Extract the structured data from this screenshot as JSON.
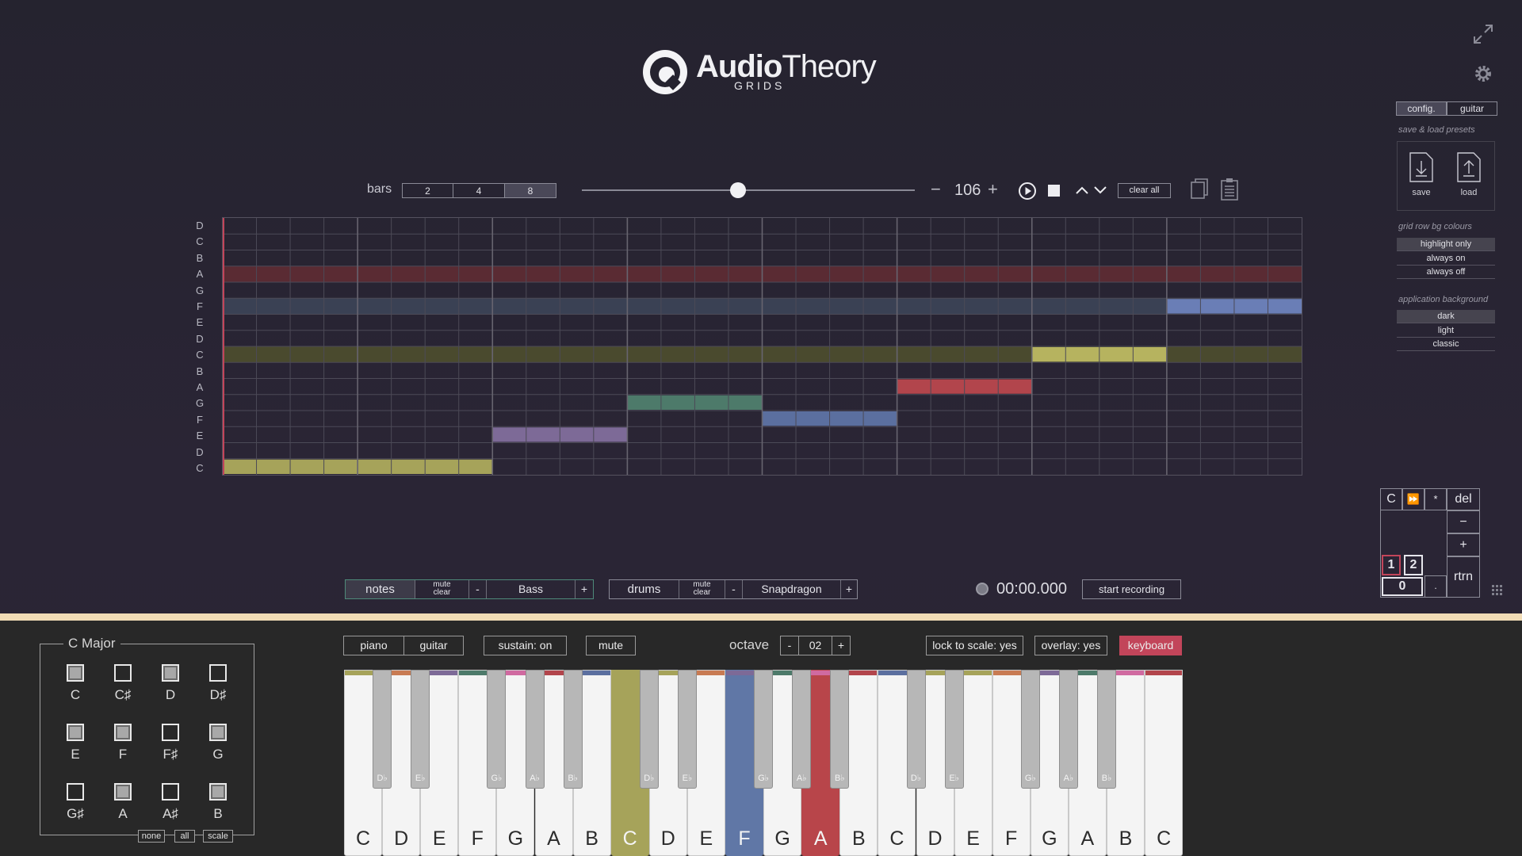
{
  "app": {
    "brand_a": "Audio",
    "brand_b": "Theory",
    "brand_sub": "GRIDS"
  },
  "toolbar": {
    "bars_label": "bars",
    "bars_options": [
      "2",
      "4",
      "8"
    ],
    "bars_selected": "8",
    "tempo_minus": "−",
    "tempo": "106",
    "tempo_plus": "+",
    "position": 0.47,
    "clear_all": "clear all"
  },
  "grid": {
    "row_labels": [
      "D",
      "C",
      "B",
      "A",
      "G",
      "F",
      "E",
      "D",
      "C",
      "B",
      "A",
      "G",
      "F",
      "E",
      "D",
      "C"
    ],
    "highlight_rows": [
      {
        "row": 3,
        "color": "#5a2b33"
      },
      {
        "row": 5,
        "color": "#3a4154"
      },
      {
        "row": 8,
        "color": "#4a4a2e"
      }
    ],
    "steps": 32,
    "notes": [
      {
        "row": 15,
        "start": 0,
        "len": 8,
        "color": "#a6a35a"
      },
      {
        "row": 13,
        "start": 8,
        "len": 4,
        "color": "#7d6a97"
      },
      {
        "row": 11,
        "start": 12,
        "len": 4,
        "color": "#4d7a6a"
      },
      {
        "row": 12,
        "start": 16,
        "len": 4,
        "color": "#5b6f9f"
      },
      {
        "row": 10,
        "start": 20,
        "len": 4,
        "color": "#b2454c"
      },
      {
        "row": 8,
        "start": 24,
        "len": 4,
        "color": "#b6b35f"
      },
      {
        "row": 5,
        "start": 28,
        "len": 4,
        "color": "#6a7eb6"
      }
    ]
  },
  "right_panel": {
    "tabs": [
      "config.",
      "guitar"
    ],
    "presets_head": "save & load presets",
    "save": "save",
    "load": "load",
    "row_bg_head": "grid row bg colours",
    "row_bg_options": [
      "highlight only",
      "always on",
      "always off"
    ],
    "app_bg_head": "application background",
    "app_bg_options": [
      "dark",
      "light",
      "classic"
    ]
  },
  "numpad": {
    "c": "C",
    "ff": "⏩",
    "star": "*",
    "del": "del",
    "minus": "−",
    "plus": "+",
    "one": "1",
    "two": "2",
    "zero": "0",
    "dot": ".",
    "rtrn": "rtrn"
  },
  "tracks": {
    "notes_label": "notes",
    "mute": "mute",
    "clear": "clear",
    "minus": "-",
    "notes_instrument": "Bass",
    "plus": "+",
    "drums_label": "drums",
    "drums_instrument": "Snapdragon"
  },
  "recording": {
    "time": "00:00.000",
    "button": "start recording"
  },
  "scale_panel": {
    "title": "C Major",
    "notes": [
      {
        "name": "C",
        "on": true
      },
      {
        "name": "C♯",
        "on": false
      },
      {
        "name": "D",
        "on": true
      },
      {
        "name": "D♯",
        "on": false
      },
      {
        "name": "E",
        "on": true
      },
      {
        "name": "F",
        "on": true
      },
      {
        "name": "F♯",
        "on": false
      },
      {
        "name": "G",
        "on": true
      },
      {
        "name": "G♯",
        "on": false
      },
      {
        "name": "A",
        "on": true
      },
      {
        "name": "A♯",
        "on": false
      },
      {
        "name": "B",
        "on": true
      }
    ],
    "none": "none",
    "all": "all",
    "scale": "scale"
  },
  "keyboard_bar": {
    "piano": "piano",
    "guitar": "guitar",
    "sustain": "sustain: on",
    "mute": "mute",
    "octave_label": "octave",
    "octave_minus": "-",
    "octave": "02",
    "octave_plus": "+",
    "lock": "lock to scale: yes",
    "overlay": "overlay: yes",
    "keyboard": "keyboard",
    "keyboard_color": "#c2455a"
  },
  "keyboard": {
    "white_keys": [
      "C",
      "D",
      "E",
      "F",
      "G",
      "A",
      "B",
      "C",
      "D",
      "E",
      "F",
      "G",
      "A",
      "B",
      "C",
      "D",
      "E",
      "F",
      "G",
      "A",
      "B",
      "C"
    ],
    "black_keys": [
      "D♭",
      "E♭",
      "G♭",
      "A♭",
      "B♭",
      "D♭",
      "E♭",
      "G♭",
      "A♭",
      "B♭",
      "D♭",
      "E♭",
      "G♭",
      "A♭",
      "B♭"
    ],
    "pressed": [
      {
        "index": 7,
        "color": "#a6a35a"
      },
      {
        "index": 10,
        "color": "#6077a6"
      },
      {
        "index": 12,
        "color": "#b8454a"
      }
    ],
    "strip_colors": [
      "#a6a35a",
      "#c87b53",
      "#7d6a97",
      "#4d7a6a",
      "#d06aa0",
      "#b2454c",
      "#5b6f9f",
      "#a6a35a"
    ]
  },
  "colors": {
    "divider": "#f1dcb6",
    "accent_red": "#c2455a"
  }
}
